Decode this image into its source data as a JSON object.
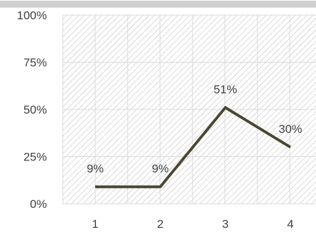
{
  "chart_data": {
    "type": "line",
    "x": [
      "1",
      "2",
      "3",
      "4"
    ],
    "series": [
      {
        "values": [
          9,
          9,
          51,
          30
        ]
      }
    ],
    "data_labels": [
      "9%",
      "9%",
      "51%",
      "30%"
    ],
    "y_ticks": [
      "0%",
      "25%",
      "50%",
      "75%",
      "100%"
    ],
    "ylim": [
      0,
      100
    ],
    "grid": true,
    "plot_pattern": "diagonal-hatch",
    "colors": {
      "line": "#4a4630",
      "grid": "#d9d9d9",
      "hatch": "#bfbfbf",
      "text": "#404040",
      "border": "#d0d0d0"
    }
  }
}
